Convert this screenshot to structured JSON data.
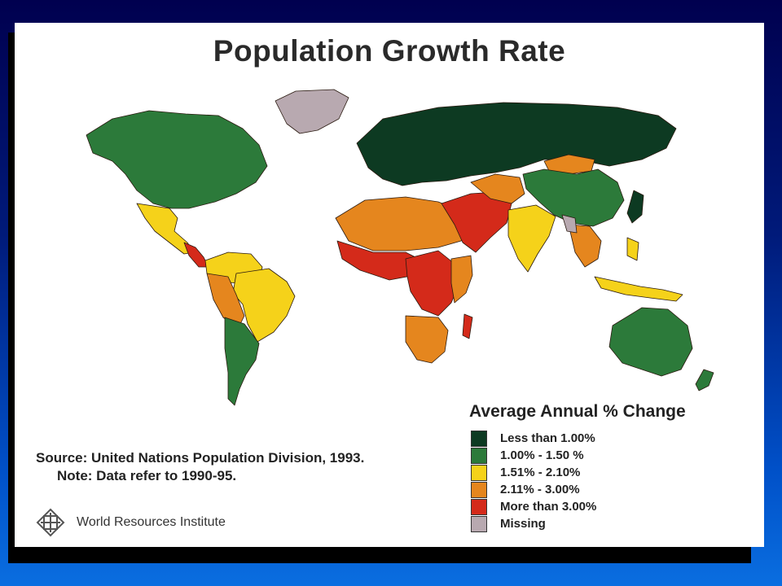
{
  "title": "Population Growth Rate",
  "legend": {
    "title": "Average Annual % Change",
    "items": [
      {
        "label": "Less than 1.00%",
        "color": "#0d3a22"
      },
      {
        "label": "1.00% - 1.50 %",
        "color": "#2c7a3a"
      },
      {
        "label": "1.51% - 2.10%",
        "color": "#f5d21a"
      },
      {
        "label": "2.11% - 3.00%",
        "color": "#e5861e"
      },
      {
        "label": "More than 3.00%",
        "color": "#d42a1a"
      },
      {
        "label": "Missing",
        "color": "#b8a9b0"
      }
    ]
  },
  "source": "Source: United Nations Population Division, 1993.",
  "note": "Note: Data refer to 1990-95.",
  "publisher": {
    "name": "World Resources Institute",
    "icon": "wri-logo-icon"
  }
}
